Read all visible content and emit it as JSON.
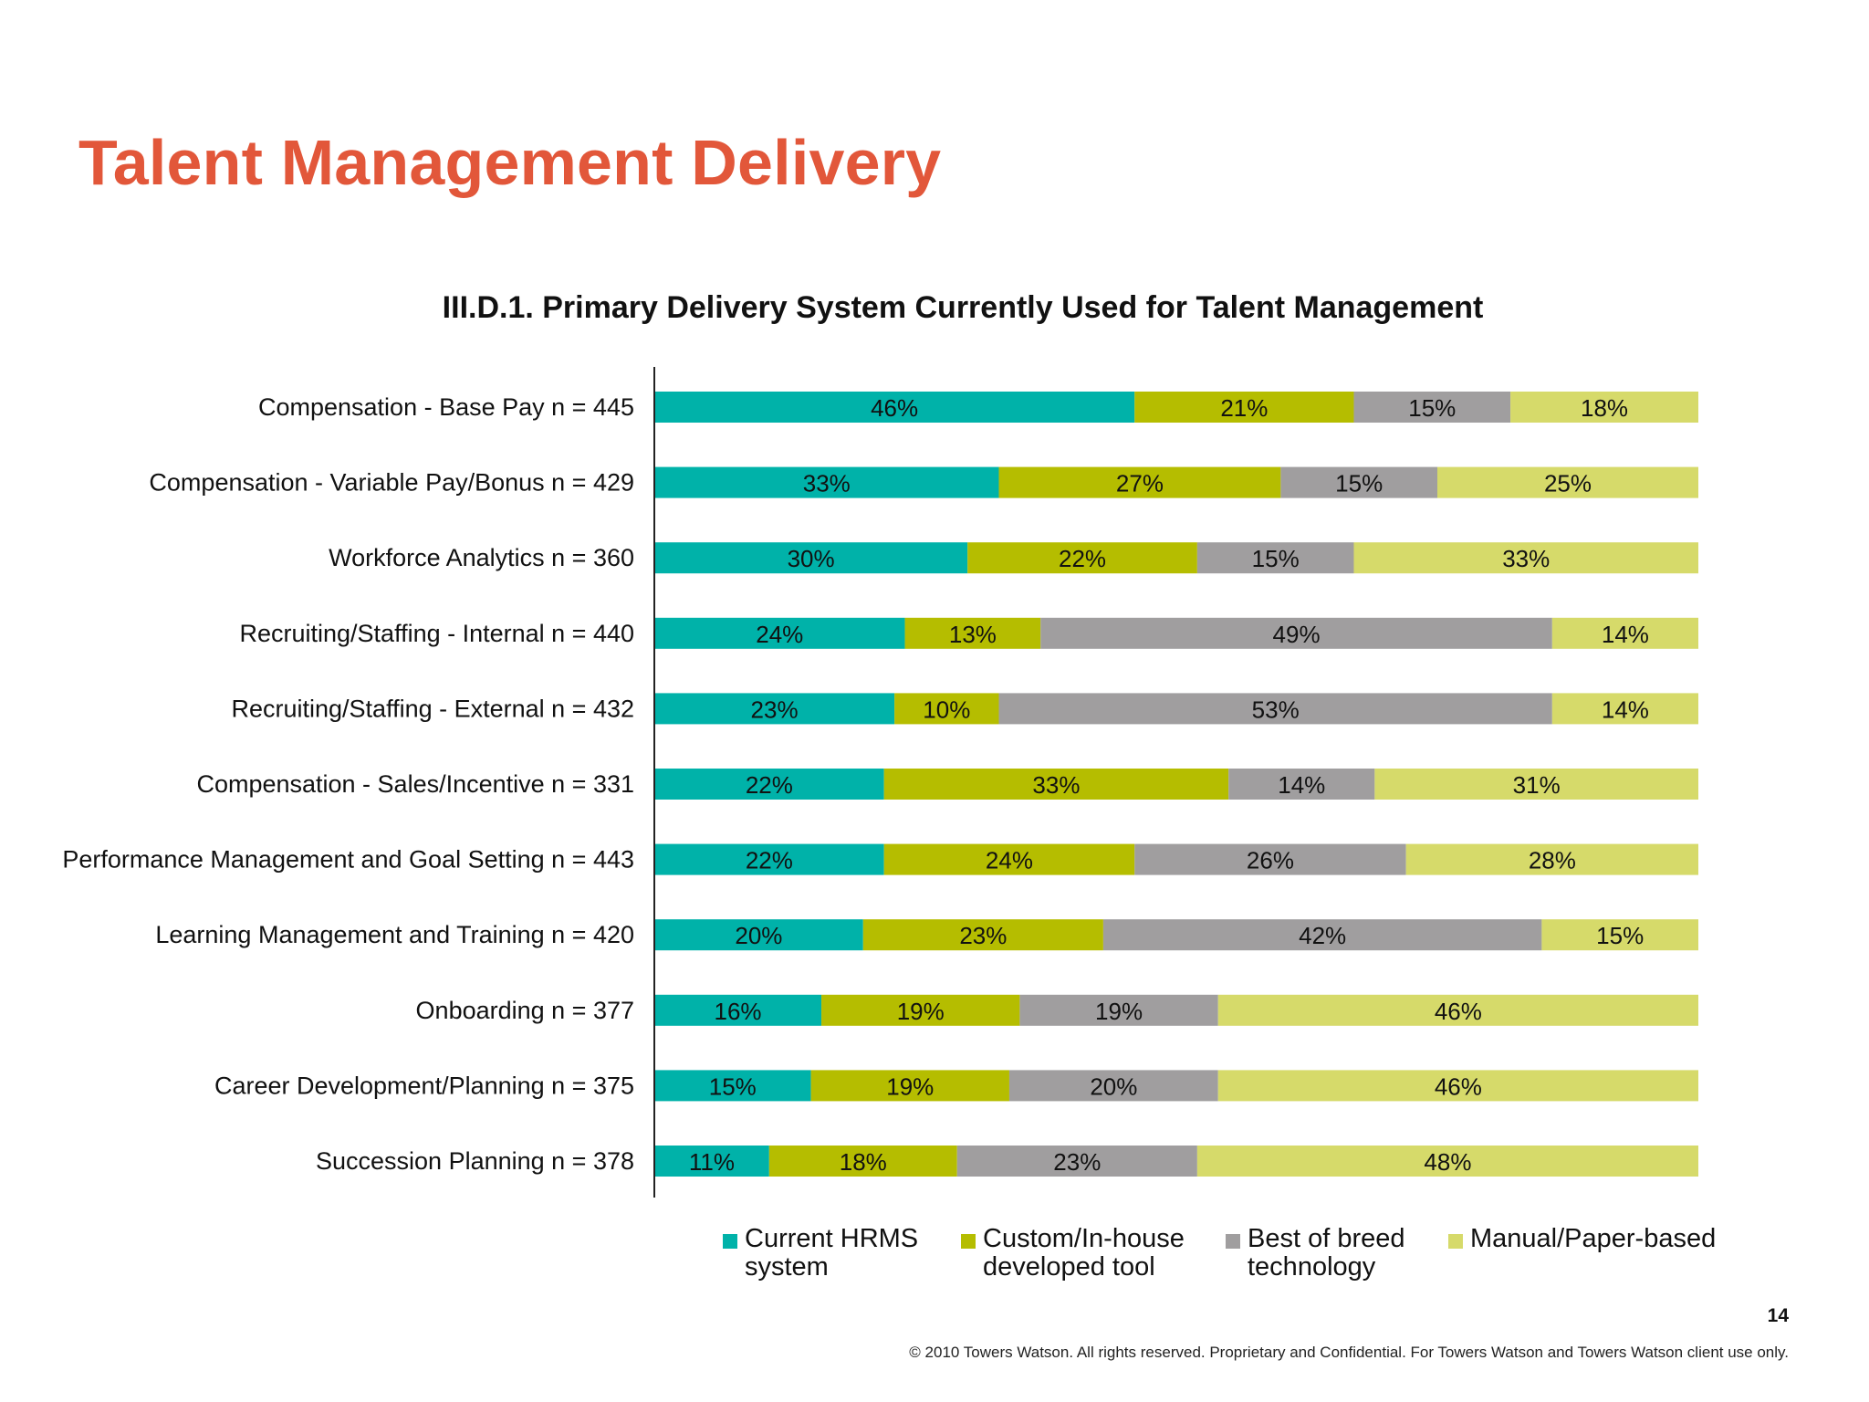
{
  "page": {
    "title": "Talent Management Delivery",
    "page_number": "14",
    "copyright": "© 2010 Towers Watson. All rights reserved. Proprietary and Confidential. For Towers Watson and Towers Watson client use only."
  },
  "chart_data": {
    "type": "bar",
    "orientation": "horizontal",
    "stacked": true,
    "title": "III.D.1. Primary Delivery System Currently Used for Talent Management",
    "categories": [
      "Compensation - Base Pay n = 445",
      "Compensation - Variable Pay/Bonus n = 429",
      "Workforce Analytics n = 360",
      "Recruiting/Staffing - Internal n = 440",
      "Recruiting/Staffing - External n = 432",
      "Compensation - Sales/Incentive n = 331",
      "Performance Management and Goal Setting n = 443",
      "Learning Management and Training n = 420",
      "Onboarding n = 377",
      "Career Development/Planning n = 375",
      "Succession Planning n = 378"
    ],
    "series": [
      {
        "name": "Current HRMS system",
        "color": "#00b2a9",
        "values": [
          46,
          33,
          30,
          24,
          23,
          22,
          22,
          20,
          16,
          15,
          11
        ]
      },
      {
        "name": "Custom/In-house developed tool",
        "color": "#b5bd00",
        "values": [
          21,
          27,
          22,
          13,
          10,
          33,
          24,
          23,
          19,
          19,
          18
        ]
      },
      {
        "name": "Best of breed technology",
        "color": "#a09e9f",
        "values": [
          15,
          15,
          15,
          49,
          53,
          14,
          26,
          42,
          19,
          20,
          23
        ]
      },
      {
        "name": "Manual/Paper-based",
        "color": "#d6da6a",
        "values": [
          18,
          25,
          33,
          14,
          14,
          31,
          28,
          15,
          46,
          46,
          48
        ]
      }
    ],
    "value_format": "percent",
    "legend_position": "bottom",
    "grid": false
  },
  "legend_items": [
    {
      "text": "Current HRMS\nsystem",
      "color": "#00b2a9"
    },
    {
      "text": "Custom/In-house\ndeveloped tool",
      "color": "#b5bd00"
    },
    {
      "text": "Best of breed\ntechnology",
      "color": "#a09e9f"
    },
    {
      "text": "Manual/Paper-based",
      "color": "#d6da6a"
    }
  ]
}
